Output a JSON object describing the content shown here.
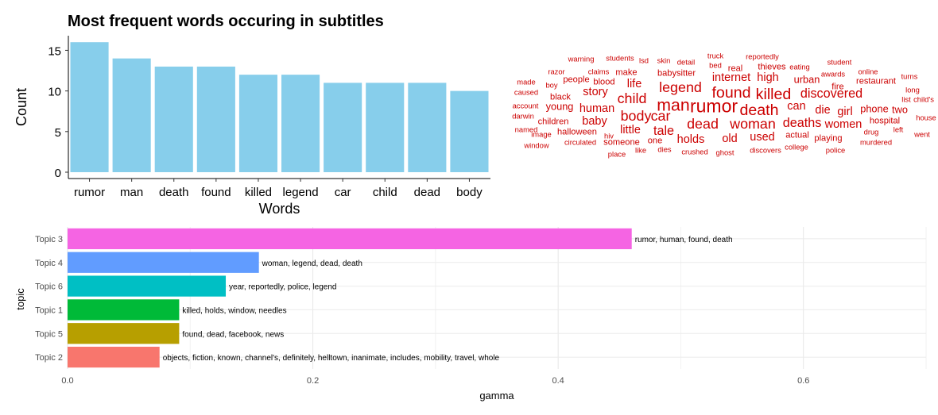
{
  "chart_data": [
    {
      "type": "bar",
      "title": "Most frequent words occuring in subtitles",
      "xlabel": "Words",
      "ylabel": "Count",
      "categories": [
        "rumor",
        "man",
        "death",
        "found",
        "killed",
        "legend",
        "car",
        "child",
        "dead",
        "body"
      ],
      "values": [
        16,
        14,
        13,
        13,
        12,
        12,
        11,
        11,
        11,
        10
      ],
      "ylim": [
        0,
        16.8
      ],
      "yticks": [
        0,
        5,
        10,
        15
      ],
      "bar_color": "#87CEEB",
      "grid": false
    },
    {
      "type": "wordcloud",
      "color": "#CC0000",
      "words": [
        {
          "text": "warning",
          "size": 1
        },
        {
          "text": "students",
          "size": 1
        },
        {
          "text": "lsd",
          "size": 1
        },
        {
          "text": "skin",
          "size": 1
        },
        {
          "text": "detail",
          "size": 1
        },
        {
          "text": "truck",
          "size": 1
        },
        {
          "text": "reportedly",
          "size": 1
        },
        {
          "text": "eating",
          "size": 1
        },
        {
          "text": "student",
          "size": 1
        },
        {
          "text": "razor",
          "size": 1
        },
        {
          "text": "claims",
          "size": 1
        },
        {
          "text": "make",
          "size": 1.5
        },
        {
          "text": "babysitter",
          "size": 1.5
        },
        {
          "text": "bed",
          "size": 1
        },
        {
          "text": "real",
          "size": 1.5
        },
        {
          "text": "thieves",
          "size": 1.5
        },
        {
          "text": "awards",
          "size": 1
        },
        {
          "text": "online",
          "size": 1
        },
        {
          "text": "turns",
          "size": 1
        },
        {
          "text": "made",
          "size": 1
        },
        {
          "text": "boy",
          "size": 1
        },
        {
          "text": "people",
          "size": 1.5
        },
        {
          "text": "blood",
          "size": 1.5
        },
        {
          "text": "life",
          "size": 2.5
        },
        {
          "text": "internet",
          "size": 2.5
        },
        {
          "text": "high",
          "size": 2.5
        },
        {
          "text": "urban",
          "size": 2
        },
        {
          "text": "restaurant",
          "size": 1.5
        },
        {
          "text": "long",
          "size": 1
        },
        {
          "text": "caused",
          "size": 1
        },
        {
          "text": "story",
          "size": 2.5
        },
        {
          "text": "legend",
          "size": 3.5
        },
        {
          "text": "found",
          "size": 4
        },
        {
          "text": "killed",
          "size": 4
        },
        {
          "text": "discovered",
          "size": 3
        },
        {
          "text": "fire",
          "size": 1.5
        },
        {
          "text": "list",
          "size": 1
        },
        {
          "text": "child's",
          "size": 1
        },
        {
          "text": "black",
          "size": 1.5
        },
        {
          "text": "child",
          "size": 3.5
        },
        {
          "text": "account",
          "size": 1
        },
        {
          "text": "young",
          "size": 2
        },
        {
          "text": "human",
          "size": 2.5
        },
        {
          "text": "man",
          "size": 4.5
        },
        {
          "text": "rumor",
          "size": 5
        },
        {
          "text": "death",
          "size": 4
        },
        {
          "text": "can",
          "size": 2.5
        },
        {
          "text": "die",
          "size": 2.5
        },
        {
          "text": "girl",
          "size": 2.5
        },
        {
          "text": "phone",
          "size": 2
        },
        {
          "text": "two",
          "size": 2
        },
        {
          "text": "house",
          "size": 1
        },
        {
          "text": "darwin",
          "size": 1
        },
        {
          "text": "body",
          "size": 3.5
        },
        {
          "text": "car",
          "size": 3.5
        },
        {
          "text": "children",
          "size": 1.5
        },
        {
          "text": "baby",
          "size": 2.5
        },
        {
          "text": "dead",
          "size": 3.5
        },
        {
          "text": "woman",
          "size": 3.5
        },
        {
          "text": "deaths",
          "size": 3
        },
        {
          "text": "women",
          "size": 2.5
        },
        {
          "text": "hospital",
          "size": 1.5
        },
        {
          "text": "named",
          "size": 1
        },
        {
          "text": "image",
          "size": 1
        },
        {
          "text": "halloween",
          "size": 1.5
        },
        {
          "text": "little",
          "size": 2.5
        },
        {
          "text": "tale",
          "size": 3
        },
        {
          "text": "old",
          "size": 2.5
        },
        {
          "text": "used",
          "size": 2.5
        },
        {
          "text": "actual",
          "size": 1.5
        },
        {
          "text": "drug",
          "size": 1
        },
        {
          "text": "left",
          "size": 1
        },
        {
          "text": "went",
          "size": 1
        },
        {
          "text": "window",
          "size": 1
        },
        {
          "text": "circulated",
          "size": 1
        },
        {
          "text": "hiv",
          "size": 1
        },
        {
          "text": "someone",
          "size": 1.5
        },
        {
          "text": "one",
          "size": 1.5
        },
        {
          "text": "holds",
          "size": 2.5
        },
        {
          "text": "playing",
          "size": 1.5
        },
        {
          "text": "murdered",
          "size": 1
        },
        {
          "text": "place",
          "size": 1
        },
        {
          "text": "like",
          "size": 1
        },
        {
          "text": "dies",
          "size": 1
        },
        {
          "text": "crushed",
          "size": 1
        },
        {
          "text": "ghost",
          "size": 1
        },
        {
          "text": "discovers",
          "size": 1
        },
        {
          "text": "college",
          "size": 1
        },
        {
          "text": "police",
          "size": 1
        }
      ]
    },
    {
      "type": "bar",
      "orientation": "horizontal",
      "xlabel": "gamma",
      "ylabel": "topic",
      "xlim": [
        0,
        0.7
      ],
      "xticks": [
        "0.0",
        "0.2",
        "0.4",
        "0.6"
      ],
      "grid": true,
      "categories": [
        "Topic 3",
        "Topic 4",
        "Topic 6",
        "Topic 1",
        "Topic 5",
        "Topic 2"
      ],
      "values": [
        0.46,
        0.156,
        0.129,
        0.091,
        0.091,
        0.075
      ],
      "colors": [
        "#F564E3",
        "#619CFF",
        "#00BFC4",
        "#00BA38",
        "#B79F00",
        "#F8766D"
      ],
      "labels": [
        "rumor, human, found, death",
        "woman, legend, dead, death",
        "year, reportedly, police, legend",
        "killed, holds, window, needles",
        "found, dead, facebook, news",
        "objects, fiction, known, channel's, definitely, helltown, inanimate, includes, mobility, travel, whole"
      ]
    }
  ]
}
